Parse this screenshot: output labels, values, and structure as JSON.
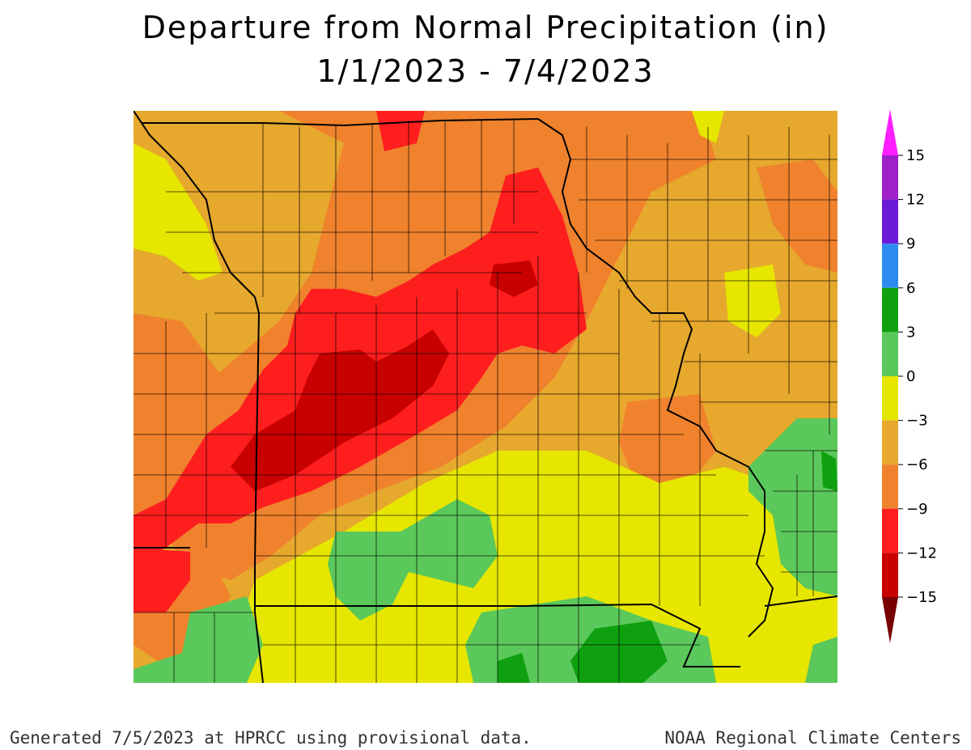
{
  "title": "Departure from Normal Precipitation (in)",
  "subtitle": "1/1/2023 - 7/4/2023",
  "footer_left": "Generated 7/5/2023 at HPRCC using provisional data.",
  "footer_right": "NOAA Regional Climate Centers",
  "legend": {
    "ticks": [
      "15",
      "12",
      "9",
      "6",
      "3",
      "0",
      "−3",
      "−6",
      "−9",
      "−12",
      "−15"
    ],
    "bands": [
      {
        "from": 12,
        "to": 15,
        "color": "#a020c8"
      },
      {
        "from": 9,
        "to": 12,
        "color": "#6a1ad8"
      },
      {
        "from": 6,
        "to": 9,
        "color": "#2d8cf0"
      },
      {
        "from": 3,
        "to": 6,
        "color": "#0fa00f"
      },
      {
        "from": 0,
        "to": 3,
        "color": "#5ac85a"
      },
      {
        "from": -3,
        "to": 0,
        "color": "#e6e600"
      },
      {
        "from": -6,
        "to": -3,
        "color": "#e6a82d"
      },
      {
        "from": -9,
        "to": -6,
        "color": "#f0822d"
      },
      {
        "from": -12,
        "to": -9,
        "color": "#ff1e1e"
      },
      {
        "from": -15,
        "to": -12,
        "color": "#c80000"
      }
    ],
    "top_arrow_color": "#ff1eff",
    "bottom_arrow_color": "#780000"
  }
}
